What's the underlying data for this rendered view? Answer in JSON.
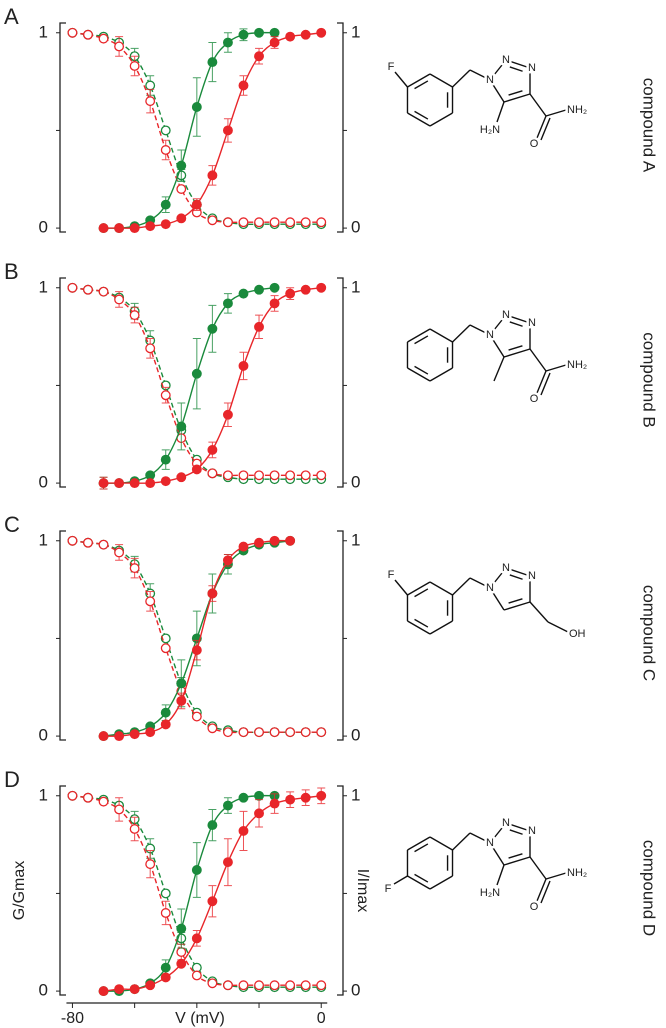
{
  "chart_data": [
    {
      "type": "scatter",
      "panel": "A",
      "compound": "compound A",
      "xlim": [
        -84,
        7
      ],
      "ylim": [
        -0.02,
        1.05
      ],
      "yticks": [
        0,
        1
      ],
      "minor_yticks": [
        0.5
      ],
      "y2lim": [
        -0.02,
        1.05
      ],
      "y2ticks": [
        0,
        1
      ],
      "minor_y2ticks": [
        0.5
      ],
      "structure": {
        "fluorine": "F",
        "fluorine_position": "meta",
        "n1": "N",
        "n2": "N",
        "n3": "N",
        "amine": "H₂N",
        "oxygen": "O",
        "amide": "NH₂"
      },
      "series": [
        {
          "color": "#1a8a3c",
          "marker": "open",
          "line": "dashed",
          "axis": "y2",
          "x": [
            -80,
            -75,
            -70,
            -65,
            -60,
            -55,
            -50,
            -45,
            -40,
            -35,
            -30,
            -25,
            -20,
            -15,
            -10,
            -5,
            0
          ],
          "values": [
            1,
            0.99,
            0.98,
            0.95,
            0.88,
            0.73,
            0.5,
            0.27,
            0.12,
            0.05,
            0.03,
            0.02,
            0.02,
            0.02,
            0.02,
            0.02,
            0.02
          ],
          "errors": [
            null,
            null,
            null,
            null,
            0.04,
            0.05,
            null,
            0.03,
            null,
            null,
            null,
            null,
            null,
            null,
            null,
            null,
            null
          ]
        },
        {
          "color": "#e8262a",
          "marker": "open",
          "line": "dashed",
          "axis": "y2",
          "x": [
            -80,
            -75,
            -70,
            -65,
            -60,
            -55,
            -50,
            -45,
            -40,
            -35,
            -30,
            -25,
            -20,
            -15,
            -10,
            -5,
            0
          ],
          "values": [
            1,
            0.99,
            0.97,
            0.93,
            0.83,
            0.65,
            0.4,
            0.2,
            0.08,
            0.04,
            0.03,
            0.03,
            0.03,
            0.03,
            0.03,
            0.03,
            0.03
          ],
          "errors": [
            null,
            null,
            null,
            0.05,
            0.05,
            0.06,
            0.05,
            null,
            null,
            null,
            null,
            null,
            null,
            null,
            null,
            null,
            null
          ]
        },
        {
          "color": "#1a8a3c",
          "marker": "filled",
          "line": "solid",
          "x": [
            -70,
            -65,
            -60,
            -55,
            -50,
            -45,
            -40,
            -35,
            -30,
            -25,
            -20,
            -15
          ],
          "values": [
            0,
            0,
            0.01,
            0.04,
            0.12,
            0.32,
            0.62,
            0.85,
            0.95,
            0.99,
            1,
            1
          ],
          "errors": [
            null,
            null,
            null,
            null,
            0.04,
            0.08,
            0.15,
            0.1,
            0.05,
            0.03,
            null,
            null
          ]
        },
        {
          "color": "#e8262a",
          "marker": "filled",
          "line": "solid",
          "x": [
            -70,
            -65,
            -60,
            -55,
            -50,
            -45,
            -40,
            -35,
            -30,
            -25,
            -20,
            -15,
            -10,
            -5,
            0
          ],
          "values": [
            0,
            0,
            0,
            0.01,
            0.02,
            0.05,
            0.12,
            0.27,
            0.5,
            0.73,
            0.88,
            0.95,
            0.98,
            0.99,
            1
          ],
          "errors": [
            null,
            null,
            null,
            null,
            null,
            null,
            0.03,
            0.05,
            0.06,
            0.05,
            0.04,
            0.03,
            null,
            null,
            null
          ]
        }
      ]
    },
    {
      "type": "scatter",
      "panel": "B",
      "compound": "compound B",
      "xlim": [
        -84,
        7
      ],
      "ylim": [
        -0.02,
        1.05
      ],
      "yticks": [
        0,
        1
      ],
      "minor_yticks": [
        0.5
      ],
      "y2lim": [
        -0.02,
        1.05
      ],
      "y2ticks": [
        0,
        1
      ],
      "minor_y2ticks": [
        0.5
      ],
      "structure": {
        "methyl": true,
        "n1": "N",
        "n2": "N",
        "n3": "N",
        "oxygen": "O",
        "amide": "NH₂"
      },
      "series": [
        {
          "color": "#1a8a3c",
          "marker": "open",
          "line": "dashed",
          "axis": "y2",
          "x": [
            -80,
            -75,
            -70,
            -65,
            -60,
            -55,
            -50,
            -45,
            -40,
            -35,
            -30,
            -25,
            -20,
            -15,
            -10,
            -5,
            0
          ],
          "values": [
            1,
            0.99,
            0.98,
            0.95,
            0.88,
            0.73,
            0.5,
            0.27,
            0.12,
            0.05,
            0.03,
            0.02,
            0.02,
            0.02,
            0.02,
            0.02,
            0.02
          ],
          "errors": [
            null,
            null,
            null,
            null,
            0.04,
            0.05,
            null,
            0.03,
            null,
            null,
            null,
            null,
            null,
            null,
            null,
            null,
            null
          ]
        },
        {
          "color": "#e8262a",
          "marker": "open",
          "line": "dashed",
          "axis": "y2",
          "x": [
            -80,
            -75,
            -70,
            -65,
            -60,
            -55,
            -50,
            -45,
            -40,
            -35,
            -30,
            -25,
            -20,
            -15,
            -10,
            -5,
            0
          ],
          "values": [
            1,
            0.99,
            0.98,
            0.94,
            0.86,
            0.69,
            0.45,
            0.23,
            0.1,
            0.05,
            0.04,
            0.04,
            0.04,
            0.04,
            0.04,
            0.04,
            0.04
          ],
          "errors": [
            null,
            null,
            null,
            0.04,
            0.04,
            0.05,
            0.04,
            null,
            null,
            null,
            null,
            null,
            null,
            null,
            null,
            null,
            null
          ]
        },
        {
          "color": "#1a8a3c",
          "marker": "filled",
          "line": "solid",
          "x": [
            -70,
            -65,
            -60,
            -55,
            -50,
            -45,
            -40,
            -35,
            -30,
            -25,
            -20,
            -15
          ],
          "values": [
            0,
            0,
            0.01,
            0.04,
            0.12,
            0.29,
            0.56,
            0.79,
            0.92,
            0.97,
            0.99,
            1
          ],
          "errors": [
            0.03,
            null,
            null,
            null,
            0.05,
            0.12,
            0.18,
            0.12,
            0.05,
            null,
            null,
            null
          ]
        },
        {
          "color": "#e8262a",
          "marker": "filled",
          "line": "solid",
          "x": [
            -70,
            -65,
            -60,
            -55,
            -50,
            -45,
            -40,
            -35,
            -30,
            -25,
            -20,
            -15,
            -10,
            -5,
            0
          ],
          "values": [
            0,
            0,
            0,
            0,
            0.01,
            0.03,
            0.07,
            0.17,
            0.35,
            0.6,
            0.8,
            0.92,
            0.97,
            0.99,
            1
          ],
          "errors": [
            0.03,
            null,
            null,
            null,
            null,
            null,
            null,
            0.04,
            0.06,
            0.07,
            0.06,
            0.04,
            0.03,
            null,
            null
          ]
        }
      ]
    },
    {
      "type": "scatter",
      "panel": "C",
      "compound": "compound C",
      "xlim": [
        -84,
        7
      ],
      "ylim": [
        -0.02,
        1.05
      ],
      "yticks": [
        0,
        1
      ],
      "minor_yticks": [
        0.5
      ],
      "y2lim": [
        -0.02,
        1.05
      ],
      "y2ticks": [
        0,
        1
      ],
      "minor_y2ticks": [
        0.5
      ],
      "structure": {
        "fluorine": "F",
        "fluorine_position": "meta",
        "n1": "N",
        "n2": "N",
        "n3": "N",
        "hydroxyl": "OH"
      },
      "series": [
        {
          "color": "#1a8a3c",
          "marker": "open",
          "line": "dashed",
          "axis": "y2",
          "x": [
            -80,
            -75,
            -70,
            -65,
            -60,
            -55,
            -50,
            -45,
            -40,
            -35,
            -30,
            -25,
            -20,
            -15,
            -10,
            -5,
            0
          ],
          "values": [
            1,
            0.99,
            0.98,
            0.95,
            0.88,
            0.73,
            0.5,
            0.27,
            0.12,
            0.05,
            0.03,
            0.02,
            0.02,
            0.02,
            0.02,
            0.02,
            0.02
          ],
          "errors": [
            null,
            null,
            null,
            null,
            0.04,
            0.05,
            null,
            0.03,
            null,
            null,
            null,
            null,
            null,
            null,
            null,
            null,
            null
          ]
        },
        {
          "color": "#e8262a",
          "marker": "open",
          "line": "dashed",
          "axis": "y2",
          "x": [
            -80,
            -75,
            -70,
            -65,
            -60,
            -55,
            -50,
            -45,
            -40,
            -35,
            -30,
            -25,
            -20,
            -15,
            -10,
            -5,
            0
          ],
          "values": [
            1,
            0.99,
            0.98,
            0.94,
            0.86,
            0.69,
            0.45,
            0.23,
            0.1,
            0.04,
            0.02,
            0.02,
            0.02,
            0.02,
            0.02,
            0.02,
            0.02
          ],
          "errors": [
            null,
            null,
            null,
            0.04,
            0.05,
            0.05,
            null,
            null,
            null,
            null,
            null,
            null,
            null,
            null,
            null,
            null,
            null
          ]
        },
        {
          "color": "#1a8a3c",
          "marker": "filled",
          "line": "solid",
          "x": [
            -70,
            -65,
            -60,
            -55,
            -50,
            -45,
            -40,
            -35,
            -30,
            -25,
            -20,
            -15,
            -10
          ],
          "values": [
            0,
            0.01,
            0.02,
            0.05,
            0.12,
            0.27,
            0.5,
            0.73,
            0.88,
            0.95,
            0.98,
            0.99,
            1
          ],
          "errors": [
            null,
            null,
            null,
            null,
            0.04,
            0.12,
            0.14,
            0.1,
            0.05,
            null,
            null,
            null,
            null
          ]
        },
        {
          "color": "#e8262a",
          "marker": "filled",
          "line": "solid",
          "x": [
            -70,
            -65,
            -60,
            -55,
            -50,
            -45,
            -40,
            -35,
            -30,
            -25,
            -20,
            -15,
            -10
          ],
          "values": [
            0,
            0,
            0.01,
            0.02,
            0.06,
            0.18,
            0.44,
            0.73,
            0.9,
            0.97,
            0.99,
            1,
            1
          ],
          "errors": [
            null,
            null,
            null,
            null,
            null,
            0.04,
            0.05,
            0.04,
            0.03,
            null,
            null,
            null,
            null
          ]
        }
      ]
    },
    {
      "type": "scatter",
      "panel": "D",
      "compound": "compound D",
      "xlim": [
        -84,
        7
      ],
      "ylim": [
        -0.02,
        1.05
      ],
      "yticks": [
        0,
        1
      ],
      "minor_yticks": [
        0.5
      ],
      "y2lim": [
        -0.02,
        1.05
      ],
      "y2ticks": [
        0,
        1
      ],
      "minor_y2ticks": [
        0.5
      ],
      "xticks": [
        -80,
        0
      ],
      "minor_xticks": [
        -60,
        -40,
        -20
      ],
      "xlabel": "V (mV)",
      "ylabel": "G/Gmax",
      "y2label": "I/Imax",
      "structure": {
        "fluorine": "F",
        "fluorine_position": "para",
        "n1": "N",
        "n2": "N",
        "n3": "N",
        "amine": "H₂N",
        "oxygen": "O",
        "amide": "NH₂"
      },
      "series": [
        {
          "color": "#1a8a3c",
          "marker": "open",
          "line": "dashed",
          "axis": "y2",
          "x": [
            -80,
            -75,
            -70,
            -65,
            -60,
            -55,
            -50,
            -45,
            -40,
            -35,
            -30,
            -25,
            -20,
            -15,
            -10,
            -5,
            0
          ],
          "values": [
            1,
            0.99,
            0.98,
            0.95,
            0.88,
            0.73,
            0.5,
            0.27,
            0.12,
            0.05,
            0.03,
            0.02,
            0.02,
            0.02,
            0.02,
            0.02,
            0.02
          ],
          "errors": [
            null,
            null,
            null,
            null,
            0.04,
            0.05,
            null,
            0.03,
            null,
            null,
            null,
            null,
            null,
            null,
            null,
            null,
            null
          ]
        },
        {
          "color": "#e8262a",
          "marker": "open",
          "line": "dashed",
          "axis": "y2",
          "x": [
            -80,
            -75,
            -70,
            -65,
            -60,
            -55,
            -50,
            -45,
            -40,
            -35,
            -30,
            -25,
            -20,
            -15,
            -10,
            -5,
            0
          ],
          "values": [
            1,
            0.99,
            0.97,
            0.93,
            0.83,
            0.65,
            0.4,
            0.2,
            0.08,
            0.04,
            0.03,
            0.03,
            0.03,
            0.03,
            0.03,
            0.03,
            0.03
          ],
          "errors": [
            null,
            null,
            null,
            0.06,
            0.06,
            0.07,
            0.06,
            0.04,
            null,
            null,
            null,
            null,
            null,
            null,
            null,
            null,
            null
          ]
        },
        {
          "color": "#1a8a3c",
          "marker": "filled",
          "line": "solid",
          "x": [
            -70,
            -65,
            -60,
            -55,
            -50,
            -45,
            -40,
            -35,
            -30,
            -25,
            -20,
            -15
          ],
          "values": [
            0,
            0,
            0.01,
            0.04,
            0.12,
            0.32,
            0.62,
            0.85,
            0.95,
            0.99,
            1,
            1
          ],
          "errors": [
            null,
            null,
            null,
            null,
            0.04,
            0.1,
            0.14,
            0.08,
            0.04,
            null,
            null,
            null
          ]
        },
        {
          "color": "#e8262a",
          "marker": "filled",
          "line": "solid",
          "x": [
            -70,
            -65,
            -60,
            -55,
            -50,
            -45,
            -40,
            -35,
            -30,
            -25,
            -20,
            -15,
            -10,
            -5,
            0
          ],
          "values": [
            0,
            0.01,
            0.01,
            0.03,
            0.07,
            0.14,
            0.27,
            0.46,
            0.66,
            0.82,
            0.91,
            0.96,
            0.98,
            0.99,
            1
          ],
          "errors": [
            null,
            null,
            null,
            null,
            null,
            null,
            0.04,
            0.08,
            0.12,
            0.1,
            0.07,
            0.05,
            0.04,
            0.04,
            0.04
          ]
        }
      ]
    }
  ]
}
